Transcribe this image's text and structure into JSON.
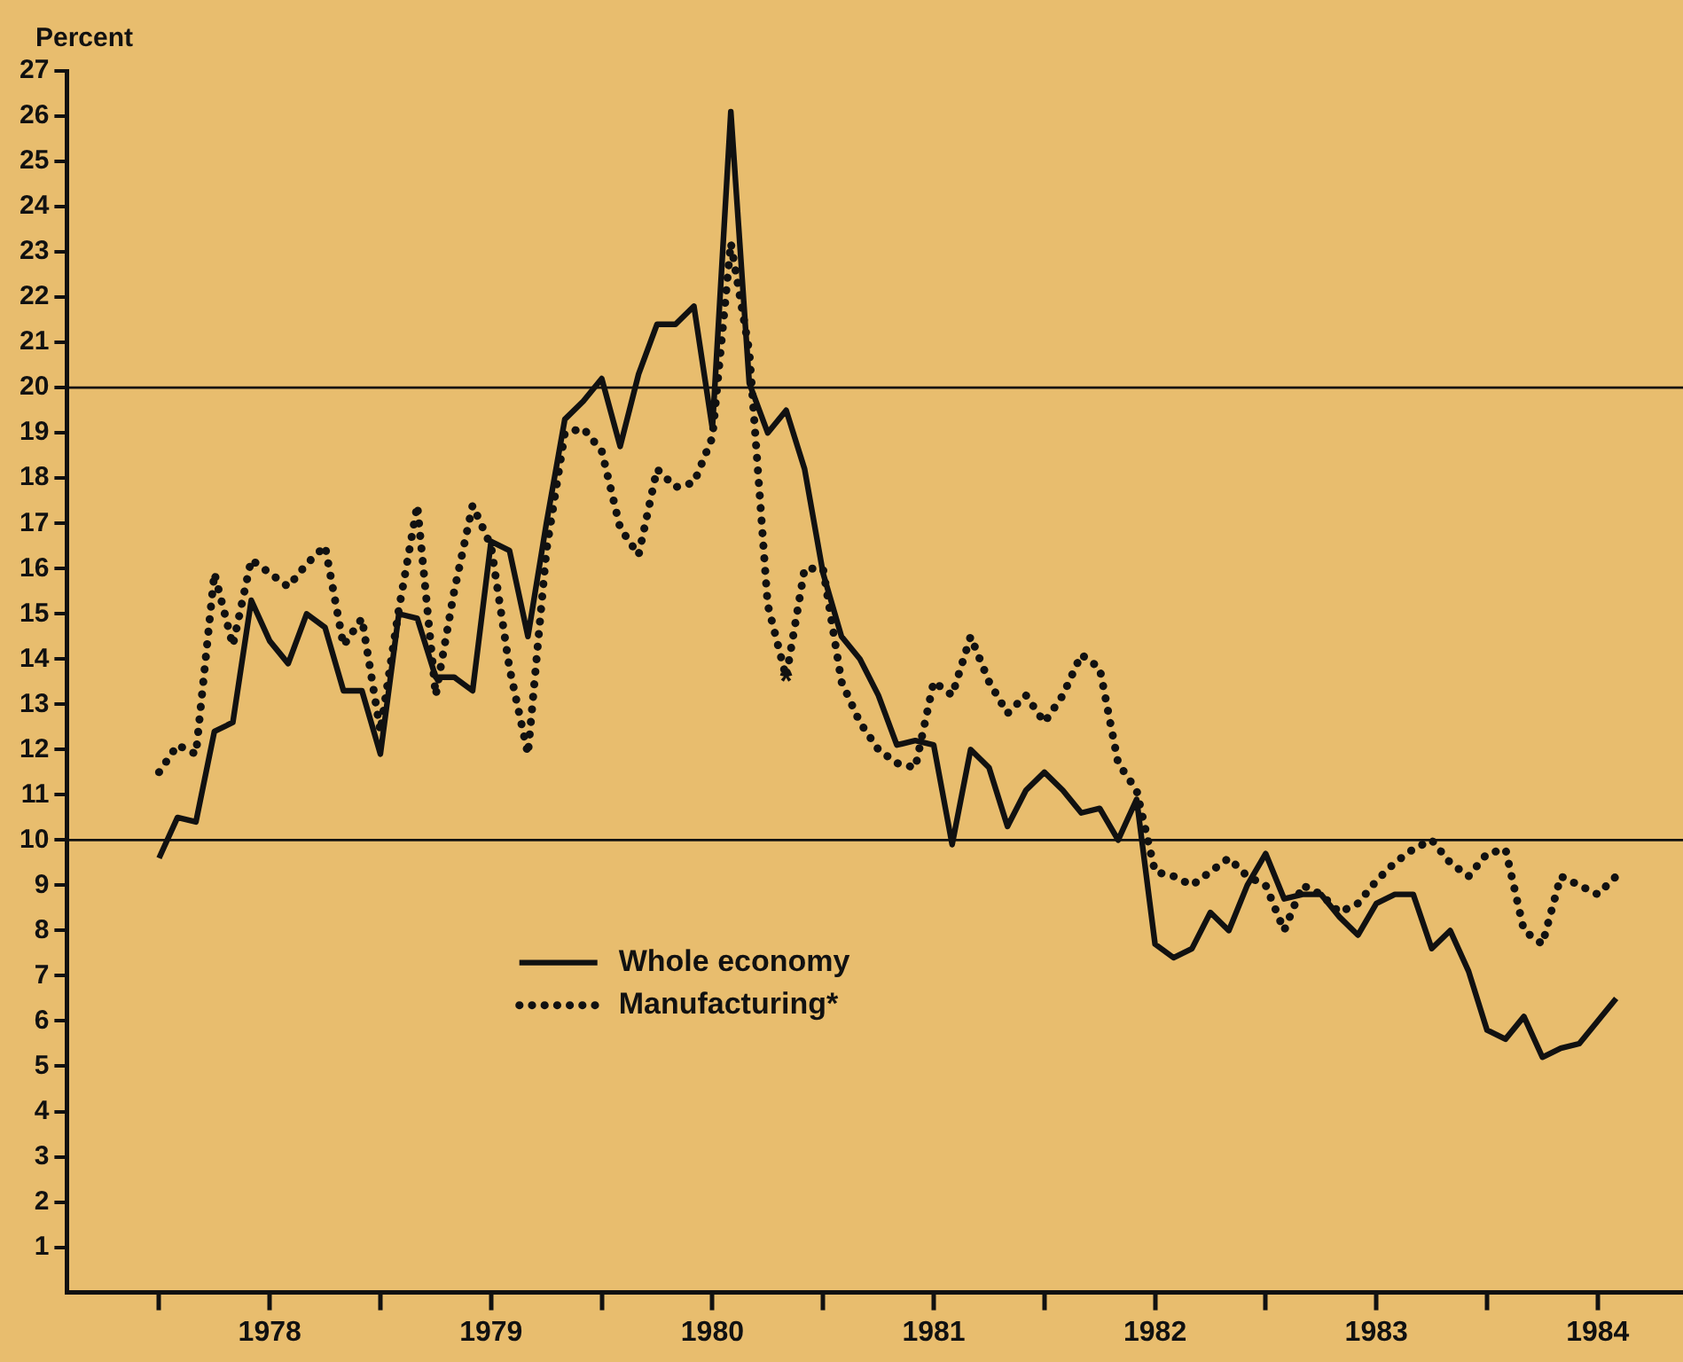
{
  "chart_data": {
    "type": "line",
    "ylabel": "Percent",
    "x": [
      "1978-01",
      "1978-02",
      "1978-03",
      "1978-04",
      "1978-05",
      "1978-06",
      "1978-07",
      "1978-08",
      "1978-09",
      "1978-10",
      "1978-11",
      "1978-12",
      "1979-01",
      "1979-02",
      "1979-03",
      "1979-04",
      "1979-05",
      "1979-06",
      "1979-07",
      "1979-08",
      "1979-09",
      "1979-10",
      "1979-11",
      "1979-12",
      "1980-01",
      "1980-02",
      "1980-03",
      "1980-04",
      "1980-05",
      "1980-06",
      "1980-07",
      "1980-08",
      "1980-09",
      "1980-10",
      "1980-11",
      "1980-12",
      "1981-01",
      "1981-02",
      "1981-03",
      "1981-04",
      "1981-05",
      "1981-06",
      "1981-07",
      "1981-08",
      "1981-09",
      "1981-10",
      "1981-11",
      "1981-12",
      "1982-01",
      "1982-02",
      "1982-03",
      "1982-04",
      "1982-05",
      "1982-06",
      "1982-07",
      "1982-08",
      "1982-09",
      "1982-10",
      "1982-11",
      "1982-12",
      "1983-01",
      "1983-02",
      "1983-03",
      "1983-04",
      "1983-05",
      "1983-06",
      "1983-07",
      "1983-08",
      "1983-09",
      "1983-10",
      "1983-11",
      "1983-12",
      "1984-01",
      "1984-02",
      "1984-03",
      "1984-04",
      "1984-05",
      "1984-06",
      "1984-07",
      "1984-08"
    ],
    "series": [
      {
        "name": "Whole economy",
        "color": "#111111",
        "line_style": "solid",
        "values": [
          9.6,
          10.5,
          10.4,
          12.4,
          12.6,
          15.3,
          14.4,
          13.9,
          15.0,
          14.7,
          13.3,
          13.3,
          11.9,
          15.0,
          14.9,
          13.6,
          13.6,
          13.3,
          16.6,
          16.4,
          14.5,
          17.0,
          19.3,
          19.7,
          20.2,
          18.7,
          20.3,
          21.4,
          21.4,
          21.8,
          19.1,
          26.1,
          20.1,
          19.0,
          19.5,
          18.2,
          15.9,
          14.5,
          14.0,
          13.2,
          12.1,
          12.2,
          12.1,
          9.9,
          12.0,
          11.6,
          10.3,
          11.1,
          11.5,
          11.1,
          10.6,
          10.7,
          10.0,
          10.9,
          7.7,
          7.4,
          7.6,
          8.4,
          8.0,
          9.0,
          9.7,
          8.7,
          8.8,
          8.8,
          8.3,
          7.9,
          8.6,
          8.8,
          8.8,
          7.6,
          8.0,
          7.1,
          5.8,
          5.6,
          6.1,
          5.2,
          5.4,
          5.5,
          6.0,
          6.5
        ]
      },
      {
        "name": "Manufacturing*",
        "color": "#111111",
        "line_style": "dotted",
        "values": [
          11.5,
          12.1,
          11.9,
          15.9,
          14.3,
          16.2,
          15.9,
          15.6,
          16.1,
          16.5,
          14.3,
          14.9,
          12.4,
          15.1,
          17.4,
          13.2,
          15.5,
          17.4,
          16.5,
          13.8,
          11.9,
          16.4,
          19.0,
          19.1,
          18.6,
          16.9,
          16.3,
          18.2,
          17.8,
          17.9,
          18.9,
          23.2,
          20.8,
          15.2,
          13.6,
          16.0,
          16.0,
          13.5,
          12.6,
          12.0,
          11.7,
          11.6,
          13.5,
          13.2,
          14.5,
          13.5,
          12.8,
          13.2,
          12.6,
          13.2,
          14.1,
          13.8,
          11.7,
          11.1,
          9.3,
          9.2,
          9.0,
          9.3,
          9.6,
          9.2,
          9.0,
          8.0,
          9.0,
          8.8,
          8.4,
          8.6,
          9.1,
          9.5,
          9.8,
          10.0,
          9.5,
          9.2,
          9.7,
          9.8,
          8.0,
          7.7,
          9.2,
          9.0,
          8.8,
          9.2
        ]
      }
    ],
    "xlim": [
      "1977-08",
      "1984-11-20"
    ],
    "xticks": [
      {
        "value": "1978-01",
        "label": null
      },
      {
        "value": "1978-07",
        "label": "1978"
      },
      {
        "value": "1979-01",
        "label": null
      },
      {
        "value": "1979-07",
        "label": "1979"
      },
      {
        "value": "1980-01",
        "label": null
      },
      {
        "value": "1980-07",
        "label": "1980"
      },
      {
        "value": "1981-01",
        "label": null
      },
      {
        "value": "1981-07",
        "label": "1981"
      },
      {
        "value": "1982-01",
        "label": null
      },
      {
        "value": "1982-07",
        "label": "1982"
      },
      {
        "value": "1983-01",
        "label": null
      },
      {
        "value": "1983-07",
        "label": "1983"
      },
      {
        "value": "1984-01",
        "label": null
      },
      {
        "value": "1984-07",
        "label": "1984"
      }
    ],
    "ylim": [
      0,
      27
    ],
    "yticks": [
      1,
      2,
      3,
      4,
      5,
      6,
      7,
      8,
      9,
      10,
      11,
      12,
      13,
      14,
      15,
      16,
      17,
      18,
      19,
      20,
      21,
      22,
      23,
      24,
      25,
      26,
      27
    ],
    "ref_lines": [
      {
        "axis": "y",
        "value": 10,
        "color": "#111111"
      },
      {
        "axis": "y",
        "value": 20,
        "color": "#111111"
      }
    ],
    "annotations": [
      {
        "text": "*",
        "x": "1980-11",
        "y": 13.6
      }
    ],
    "legend": "bottom",
    "marker": "none",
    "grid": false
  }
}
